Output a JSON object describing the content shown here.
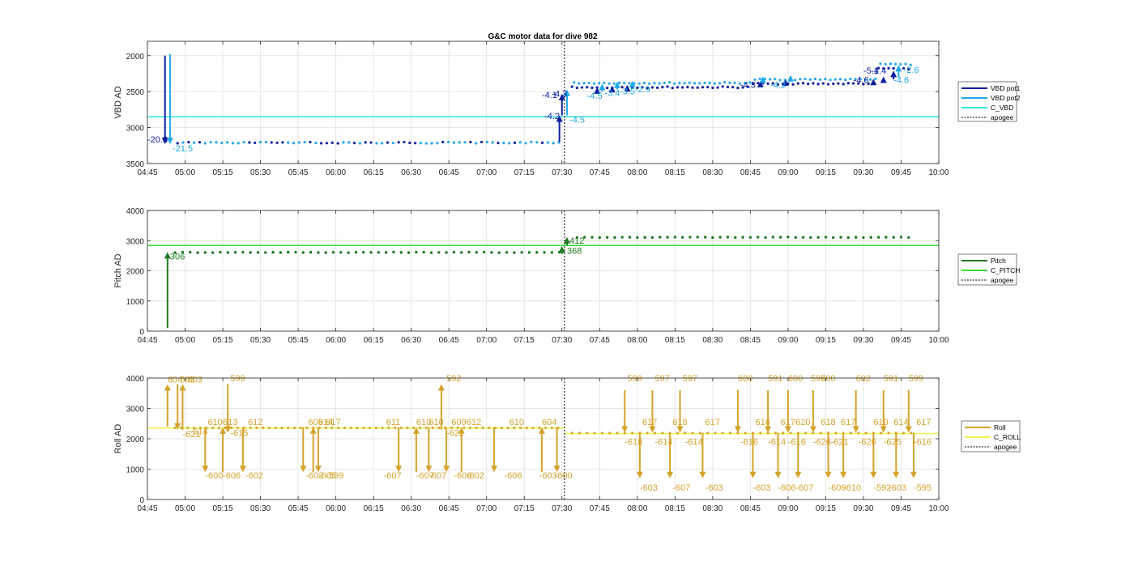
{
  "figure_title": "G&C motor data for dive 982",
  "colors": {
    "vbd_pot1": "#0b1f9e",
    "vbd_pot2": "#21a8e8",
    "c_vbd": "#2ee6e6",
    "pitch": "#1e7a1e",
    "c_pitch": "#33dd33",
    "roll": "#d4a32a",
    "c_roll": "#f2f24a",
    "apogee": "#000000",
    "grid": "#e6e6e6",
    "axis": "#262626"
  },
  "chart_data": [
    {
      "type": "scatter",
      "name": "vbd",
      "ylabel": "VBD AD",
      "ylim": [
        3500,
        1800
      ],
      "y_reversed": true,
      "xlim": [
        "04:45",
        "10:00"
      ],
      "yticks": [
        "2000",
        "2500",
        "3000",
        "3500"
      ],
      "ytick_values": [
        2000,
        2500,
        3000,
        3500
      ],
      "xticks": [
        "04:45",
        "05:00",
        "05:15",
        "05:30",
        "05:45",
        "06:00",
        "06:15",
        "06:30",
        "06:45",
        "07:00",
        "07:15",
        "07:30",
        "07:45",
        "08:00",
        "08:15",
        "08:30",
        "08:45",
        "09:00",
        "09:15",
        "09:30",
        "09:45",
        "10:00"
      ],
      "grid": true,
      "legend_placement": "outside-right",
      "legend": [
        "VBD pot1",
        "VBD pot2",
        "C_VBD",
        "apogee"
      ],
      "c_vbd": 2850,
      "apogee": "07:31",
      "arrows": [
        {
          "series": "pot1",
          "t": "04:52",
          "y0": 2000,
          "y1": 3230
        },
        {
          "series": "pot2",
          "t": "04:54",
          "y0": 1980,
          "y1": 3230
        },
        {
          "series": "pot1",
          "t": "07:29",
          "y0": 3200,
          "y1": 2830
        },
        {
          "series": "pot1",
          "t": "07:30",
          "y0": 2830,
          "y1": 2530
        },
        {
          "series": "pot2",
          "t": "07:32",
          "y0": 2830,
          "y1": 2470
        },
        {
          "series": "pot1",
          "t": "07:44",
          "y0": 2530,
          "y1": 2440
        },
        {
          "series": "pot2",
          "t": "07:46",
          "y0": 2500,
          "y1": 2390
        },
        {
          "series": "pot1",
          "t": "07:50",
          "y0": 2500,
          "y1": 2420
        },
        {
          "series": "pot2",
          "t": "07:52",
          "y0": 2470,
          "y1": 2360
        },
        {
          "series": "pot1",
          "t": "07:56",
          "y0": 2480,
          "y1": 2410
        },
        {
          "series": "pot2",
          "t": "07:58",
          "y0": 2440,
          "y1": 2350
        },
        {
          "series": "pot1",
          "t": "08:49",
          "y0": 2400,
          "y1": 2350
        },
        {
          "series": "pot2",
          "t": "08:50",
          "y0": 2370,
          "y1": 2290
        },
        {
          "series": "pot1",
          "t": "08:59",
          "y0": 2380,
          "y1": 2330
        },
        {
          "series": "pot2",
          "t": "09:01",
          "y0": 2340,
          "y1": 2270
        },
        {
          "series": "pot1",
          "t": "09:34",
          "y0": 2380,
          "y1": 2320
        },
        {
          "series": "pot1",
          "t": "09:38",
          "y0": 2350,
          "y1": 2290
        },
        {
          "series": "pot1",
          "t": "09:42",
          "y0": 2330,
          "y1": 2210
        },
        {
          "series": "pot2",
          "t": "09:44",
          "y0": 2300,
          "y1": 2130
        }
      ],
      "labels": [
        {
          "text": "-20.3",
          "t": "04:45",
          "y": 3210,
          "series": "pot1"
        },
        {
          "text": "-21.5",
          "t": "04:55",
          "y": 3330,
          "series": "pot2"
        },
        {
          "text": "-4.2",
          "t": "07:23",
          "y": 2880,
          "series": "pot1"
        },
        {
          "text": "-4.5",
          "t": "07:33",
          "y": 2930,
          "series": "pot2"
        },
        {
          "text": "-4.1",
          "t": "07:22",
          "y": 2590,
          "series": "pot1"
        },
        {
          "text": "-4.3",
          "t": "07:26",
          "y": 2570,
          "series": "pot1"
        },
        {
          "text": "-4.5",
          "t": "07:40",
          "y": 2600,
          "series": "pot2"
        },
        {
          "text": "-3.4",
          "t": "07:47",
          "y": 2560,
          "series": "pot2"
        },
        {
          "text": "-3.5",
          "t": "07:53",
          "y": 2540,
          "series": "pot2"
        },
        {
          "text": "-2.9",
          "t": "07:59",
          "y": 2510,
          "series": "pot2"
        },
        {
          "text": "-4.3",
          "t": "08:41",
          "y": 2450,
          "series": "pot1"
        },
        {
          "text": "-4.2",
          "t": "08:53",
          "y": 2450,
          "series": "pot2"
        },
        {
          "text": "-4.6",
          "t": "09:26",
          "y": 2380,
          "series": "pot1"
        },
        {
          "text": "-5.1",
          "t": "09:30",
          "y": 2250,
          "series": "pot1"
        },
        {
          "text": "-4.4",
          "t": "09:33",
          "y": 2250,
          "series": "pot1"
        },
        {
          "text": "-4.6",
          "t": "09:42",
          "y": 2380,
          "series": "pot2"
        },
        {
          "text": "-2.6",
          "t": "09:46",
          "y": 2240,
          "series": "pot2"
        }
      ]
    },
    {
      "type": "scatter",
      "name": "pitch",
      "ylabel": "Pitch AD",
      "ylim": [
        0,
        4000
      ],
      "yticks": [
        "0",
        "1000",
        "2000",
        "3000",
        "4000"
      ],
      "ytick_values": [
        0,
        1000,
        2000,
        3000,
        4000
      ],
      "xlim": [
        "04:45",
        "10:00"
      ],
      "xticks": [
        "04:45",
        "05:00",
        "05:15",
        "05:30",
        "05:45",
        "06:00",
        "06:15",
        "06:30",
        "06:45",
        "07:00",
        "07:15",
        "07:30",
        "07:45",
        "08:00",
        "08:15",
        "08:30",
        "08:45",
        "09:00",
        "09:15",
        "09:30",
        "09:45",
        "10:00"
      ],
      "grid": true,
      "legend_placement": "outside-right",
      "legend": [
        "Pitch",
        "C_PITCH",
        "apogee"
      ],
      "c_pitch": 2840,
      "apogee": "07:31",
      "arrows": [
        {
          "t": "04:53",
          "y0": 100,
          "y1": 2620
        },
        {
          "t": "07:30",
          "y0": 2560,
          "y1": 2820
        },
        {
          "t": "07:32",
          "y0": 2840,
          "y1": 3120
        }
      ],
      "labels": [
        {
          "text": "306",
          "t": "04:54",
          "y": 2380
        },
        {
          "text": "412",
          "t": "07:33",
          "y": 2900
        },
        {
          "text": "368",
          "t": "07:32",
          "y": 2560
        }
      ]
    },
    {
      "type": "scatter",
      "name": "roll",
      "ylabel": "Roll AD",
      "ylim": [
        0,
        4000
      ],
      "yticks": [
        "0",
        "1000",
        "2000",
        "3000",
        "4000"
      ],
      "ytick_values": [
        0,
        1000,
        2000,
        3000,
        4000
      ],
      "xlim": [
        "04:45",
        "10:00"
      ],
      "xticks": [
        "04:45",
        "05:00",
        "05:15",
        "05:30",
        "05:45",
        "06:00",
        "06:15",
        "06:30",
        "06:45",
        "07:00",
        "07:15",
        "07:30",
        "07:45",
        "08:00",
        "08:15",
        "08:30",
        "08:45",
        "09:00",
        "09:15",
        "09:30",
        "09:45",
        "10:00"
      ],
      "grid": true,
      "legend_placement": "outside-right",
      "legend": [
        "Roll",
        "C_ROLL",
        "apogee"
      ],
      "c_roll_before": 2350,
      "c_roll_after": 2170,
      "apogee": "07:31",
      "arrows": [
        {
          "t": "04:53",
          "y0": 2400,
          "y1": 3800
        },
        {
          "t": "04:57",
          "y0": 3800,
          "y1": 2300
        },
        {
          "t": "04:59",
          "y0": 2300,
          "y1": 3800
        },
        {
          "t": "05:08",
          "y0": 2380,
          "y1": 900
        },
        {
          "t": "05:15",
          "y0": 900,
          "y1": 2380
        },
        {
          "t": "05:17",
          "y0": 3800,
          "y1": 2200
        },
        {
          "t": "05:23",
          "y0": 2380,
          "y1": 900
        },
        {
          "t": "05:47",
          "y0": 2380,
          "y1": 900
        },
        {
          "t": "05:51",
          "y0": 900,
          "y1": 2380
        },
        {
          "t": "05:53",
          "y0": 2380,
          "y1": 900
        },
        {
          "t": "06:25",
          "y0": 2380,
          "y1": 900
        },
        {
          "t": "06:32",
          "y0": 900,
          "y1": 2380
        },
        {
          "t": "06:37",
          "y0": 2380,
          "y1": 900
        },
        {
          "t": "06:42",
          "y0": 2300,
          "y1": 3800
        },
        {
          "t": "06:44",
          "y0": 2380,
          "y1": 900
        },
        {
          "t": "06:50",
          "y0": 900,
          "y1": 2380
        },
        {
          "t": "07:03",
          "y0": 2380,
          "y1": 900
        },
        {
          "t": "07:22",
          "y0": 900,
          "y1": 2380
        },
        {
          "t": "07:28",
          "y0": 2380,
          "y1": 900
        },
        {
          "t": "07:55",
          "y0": 3600,
          "y1": 2200
        },
        {
          "t": "08:01",
          "y0": 2200,
          "y1": 700
        },
        {
          "t": "08:06",
          "y0": 3600,
          "y1": 2200
        },
        {
          "t": "08:13",
          "y0": 2200,
          "y1": 700
        },
        {
          "t": "08:17",
          "y0": 3600,
          "y1": 2200
        },
        {
          "t": "08:26",
          "y0": 2200,
          "y1": 700
        },
        {
          "t": "08:40",
          "y0": 3600,
          "y1": 2200
        },
        {
          "t": "08:46",
          "y0": 2200,
          "y1": 700
        },
        {
          "t": "08:52",
          "y0": 3600,
          "y1": 2200
        },
        {
          "t": "08:56",
          "y0": 2200,
          "y1": 700
        },
        {
          "t": "09:00",
          "y0": 3600,
          "y1": 2200
        },
        {
          "t": "09:04",
          "y0": 2200,
          "y1": 700
        },
        {
          "t": "09:10",
          "y0": 3600,
          "y1": 2200
        },
        {
          "t": "09:16",
          "y0": 2200,
          "y1": 700
        },
        {
          "t": "09:22",
          "y0": 2200,
          "y1": 700
        },
        {
          "t": "09:27",
          "y0": 3600,
          "y1": 2200
        },
        {
          "t": "09:34",
          "y0": 2200,
          "y1": 700
        },
        {
          "t": "09:38",
          "y0": 3600,
          "y1": 2200
        },
        {
          "t": "09:43",
          "y0": 2200,
          "y1": 700
        },
        {
          "t": "09:48",
          "y0": 3600,
          "y1": 2200
        },
        {
          "t": "09:50",
          "y0": 2200,
          "y1": 700
        }
      ],
      "labels": [
        {
          "text": "604",
          "t": "04:53",
          "y": 3850
        },
        {
          "text": "593",
          "t": "04:58",
          "y": 3850
        },
        {
          "text": "603",
          "t": "05:01",
          "y": 3850
        },
        {
          "text": "-621",
          "t": "04:59",
          "y": 2050
        },
        {
          "text": "-614",
          "t": "05:02",
          "y": 2150
        },
        {
          "text": "610",
          "t": "05:09",
          "y": 2450
        },
        {
          "text": "-600",
          "t": "05:08",
          "y": 700
        },
        {
          "text": "613",
          "t": "05:15",
          "y": 2450
        },
        {
          "text": "-606",
          "t": "05:15",
          "y": 700
        },
        {
          "text": "599",
          "t": "05:18",
          "y": 3900
        },
        {
          "text": "-615",
          "t": "05:18",
          "y": 2100
        },
        {
          "text": "612",
          "t": "05:25",
          "y": 2450
        },
        {
          "text": "-602",
          "t": "05:24",
          "y": 700
        },
        {
          "text": "609",
          "t": "05:49",
          "y": 2450
        },
        {
          "text": "-602",
          "t": "05:48",
          "y": 700
        },
        {
          "text": "614",
          "t": "05:53",
          "y": 2450
        },
        {
          "text": "-605",
          "t": "05:53",
          "y": 700
        },
        {
          "text": "617",
          "t": "05:56",
          "y": 2450
        },
        {
          "text": "-599",
          "t": "05:56",
          "y": 700
        },
        {
          "text": "611",
          "t": "06:20",
          "y": 2450
        },
        {
          "text": "-607",
          "t": "06:19",
          "y": 700
        },
        {
          "text": "610",
          "t": "06:32",
          "y": 2450
        },
        {
          "text": "-607",
          "t": "06:32",
          "y": 700
        },
        {
          "text": "610",
          "t": "06:37",
          "y": 2450
        },
        {
          "text": "-607",
          "t": "06:37",
          "y": 700
        },
        {
          "text": "592",
          "t": "06:44",
          "y": 3900
        },
        {
          "text": "-622",
          "t": "06:44",
          "y": 2100
        },
        {
          "text": "609",
          "t": "06:46",
          "y": 2450
        },
        {
          "text": "612",
          "t": "06:52",
          "y": 2450
        },
        {
          "text": "-606",
          "t": "06:47",
          "y": 700
        },
        {
          "text": "-602",
          "t": "06:52",
          "y": 700
        },
        {
          "text": "610",
          "t": "07:09",
          "y": 2450
        },
        {
          "text": "-606",
          "t": "07:07",
          "y": 700
        },
        {
          "text": "604",
          "t": "07:22",
          "y": 2450
        },
        {
          "text": "-603",
          "t": "07:21",
          "y": 700
        },
        {
          "text": "-600",
          "t": "07:27",
          "y": 700
        },
        {
          "text": "599",
          "t": "07:56",
          "y": 3900
        },
        {
          "text": "-618",
          "t": "07:55",
          "y": 1800
        },
        {
          "text": "617",
          "t": "08:02",
          "y": 2450
        },
        {
          "text": "-603",
          "t": "08:01",
          "y": 300
        },
        {
          "text": "597",
          "t": "08:07",
          "y": 3900
        },
        {
          "text": "-614",
          "t": "08:07",
          "y": 1800
        },
        {
          "text": "618",
          "t": "08:14",
          "y": 2450
        },
        {
          "text": "-607",
          "t": "08:14",
          "y": 300
        },
        {
          "text": "597",
          "t": "08:18",
          "y": 3900
        },
        {
          "text": "-614",
          "t": "08:19",
          "y": 1800
        },
        {
          "text": "617",
          "t": "08:27",
          "y": 2450
        },
        {
          "text": "-603",
          "t": "08:27",
          "y": 300
        },
        {
          "text": "600",
          "t": "08:40",
          "y": 3900
        },
        {
          "text": "-616",
          "t": "08:41",
          "y": 1800
        },
        {
          "text": "616",
          "t": "08:47",
          "y": 2450
        },
        {
          "text": "-603",
          "t": "08:46",
          "y": 300
        },
        {
          "text": "591",
          "t": "08:52",
          "y": 3900
        },
        {
          "text": "-614",
          "t": "08:52",
          "y": 1800
        },
        {
          "text": "617",
          "t": "08:57",
          "y": 2450
        },
        {
          "text": "-606",
          "t": "08:56",
          "y": 300
        },
        {
          "text": "600",
          "t": "09:00",
          "y": 3900
        },
        {
          "text": "-616",
          "t": "09:00",
          "y": 1800
        },
        {
          "text": "620",
          "t": "09:03",
          "y": 2450
        },
        {
          "text": "-607",
          "t": "09:03",
          "y": 300
        },
        {
          "text": "597",
          "t": "09:09",
          "y": 3900
        },
        {
          "text": "600",
          "t": "09:13",
          "y": 3900
        },
        {
          "text": "618",
          "t": "09:13",
          "y": 2450
        },
        {
          "text": "-626",
          "t": "09:10",
          "y": 1800
        },
        {
          "text": "-621",
          "t": "09:17",
          "y": 1800
        },
        {
          "text": "617",
          "t": "09:21",
          "y": 2450
        },
        {
          "text": "-609",
          "t": "09:16",
          "y": 300
        },
        {
          "text": "-610",
          "t": "09:22",
          "y": 300
        },
        {
          "text": "602",
          "t": "09:27",
          "y": 3900
        },
        {
          "text": "-626",
          "t": "09:28",
          "y": 1800
        },
        {
          "text": "619",
          "t": "09:34",
          "y": 2450
        },
        {
          "text": "-592",
          "t": "09:34",
          "y": 300
        },
        {
          "text": "591",
          "t": "09:38",
          "y": 3900
        },
        {
          "text": "-625",
          "t": "09:38",
          "y": 1800
        },
        {
          "text": "614",
          "t": "09:42",
          "y": 2450
        },
        {
          "text": "-603",
          "t": "09:40",
          "y": 300
        },
        {
          "text": "599",
          "t": "09:48",
          "y": 3900
        },
        {
          "text": "-616",
          "t": "09:50",
          "y": 1800
        },
        {
          "text": "617",
          "t": "09:51",
          "y": 2450
        },
        {
          "text": "-595",
          "t": "09:50",
          "y": 300
        }
      ]
    }
  ]
}
